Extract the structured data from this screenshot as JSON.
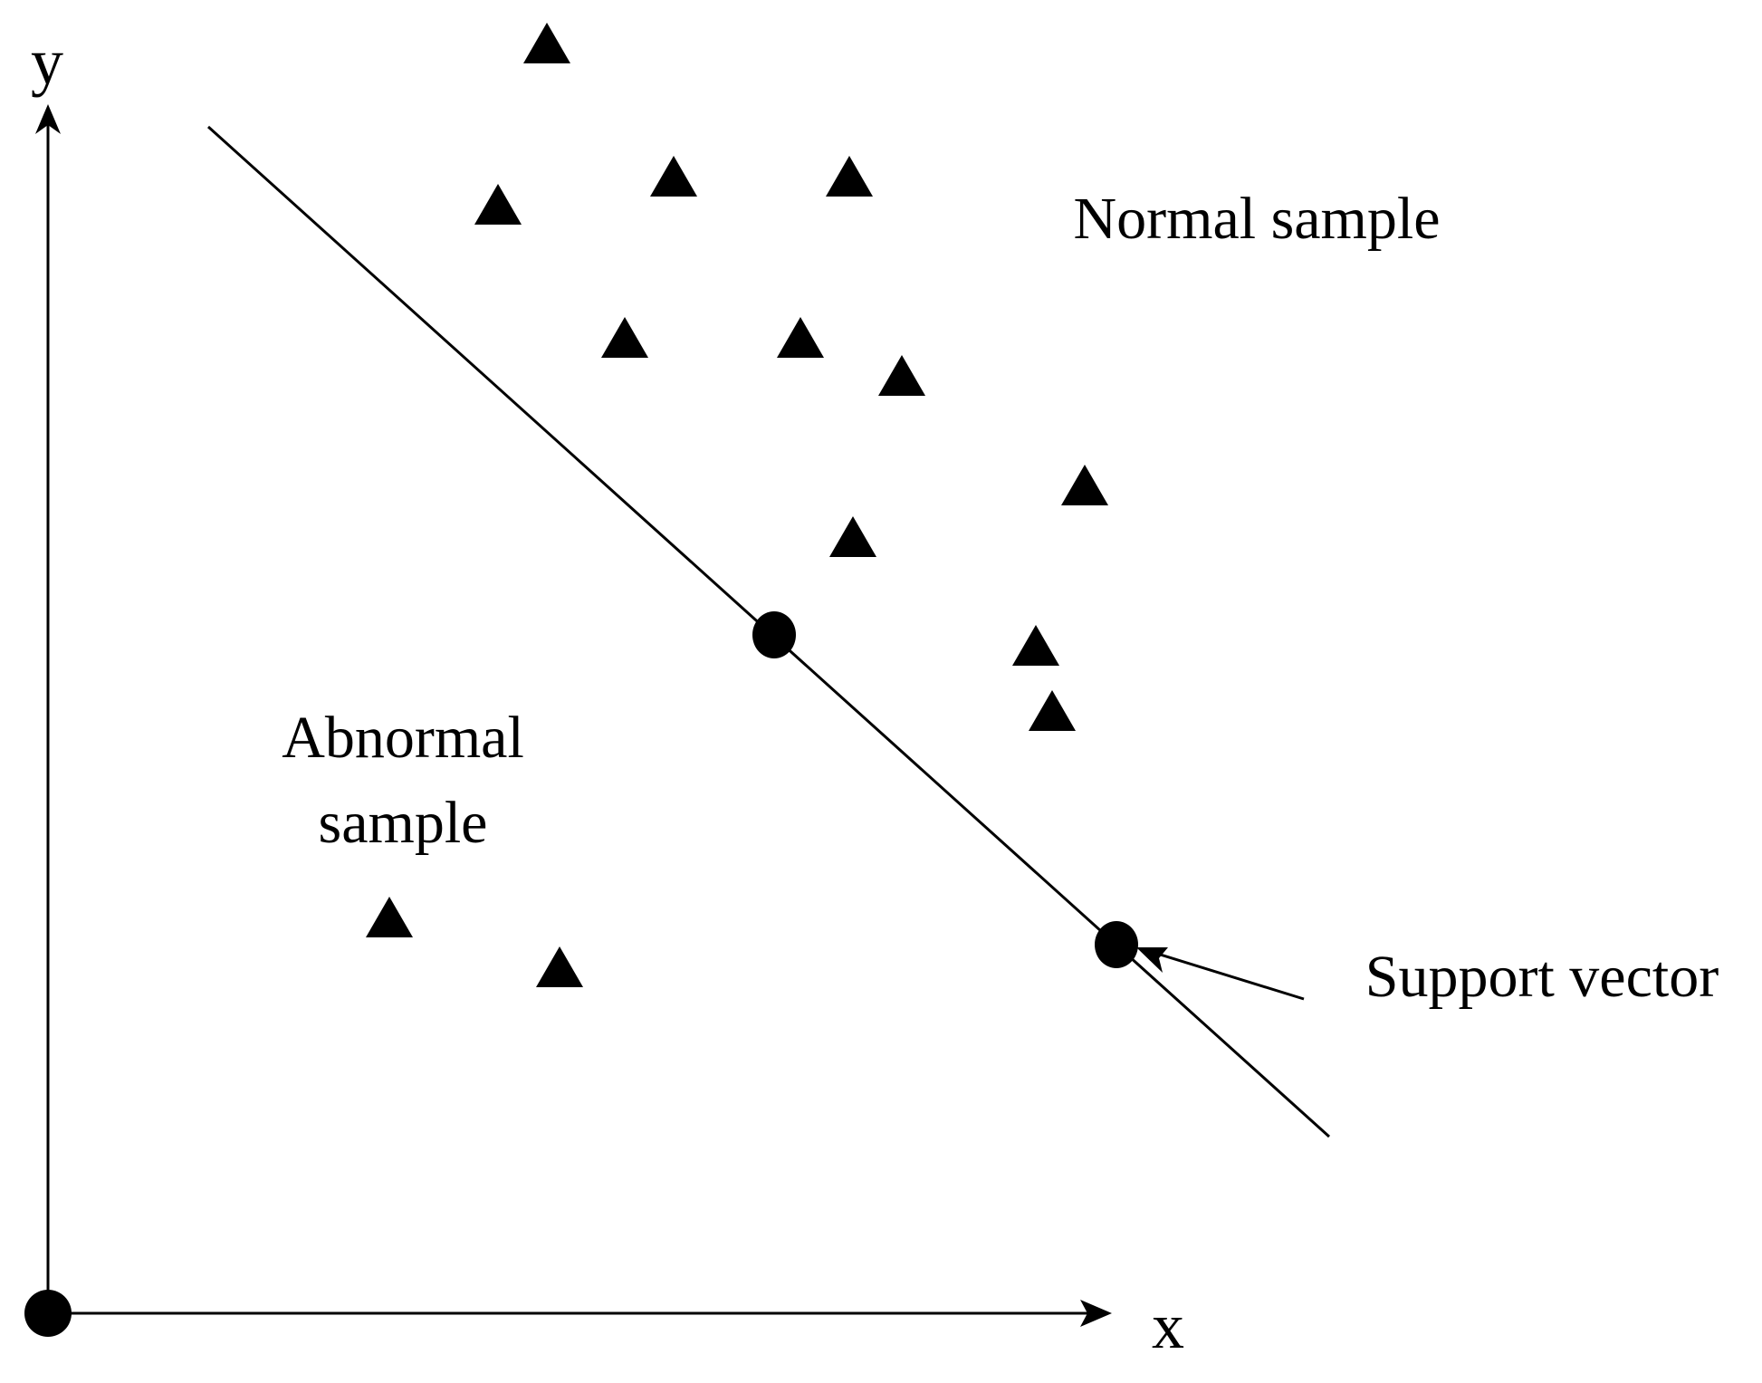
{
  "axes": {
    "x_label": "x",
    "y_label": "y"
  },
  "regions": {
    "normal_label": "Normal sample",
    "abnormal_label_line1": "Abnormal",
    "abnormal_label_line2": "sample"
  },
  "annotations": {
    "support_vector_label": "Support vector"
  },
  "markers": {
    "sample_shape": "triangle",
    "support_vector_shape": "circle",
    "origin_shape": "circle"
  },
  "colors": {
    "ink": "#000000",
    "background": "#ffffff"
  }
}
